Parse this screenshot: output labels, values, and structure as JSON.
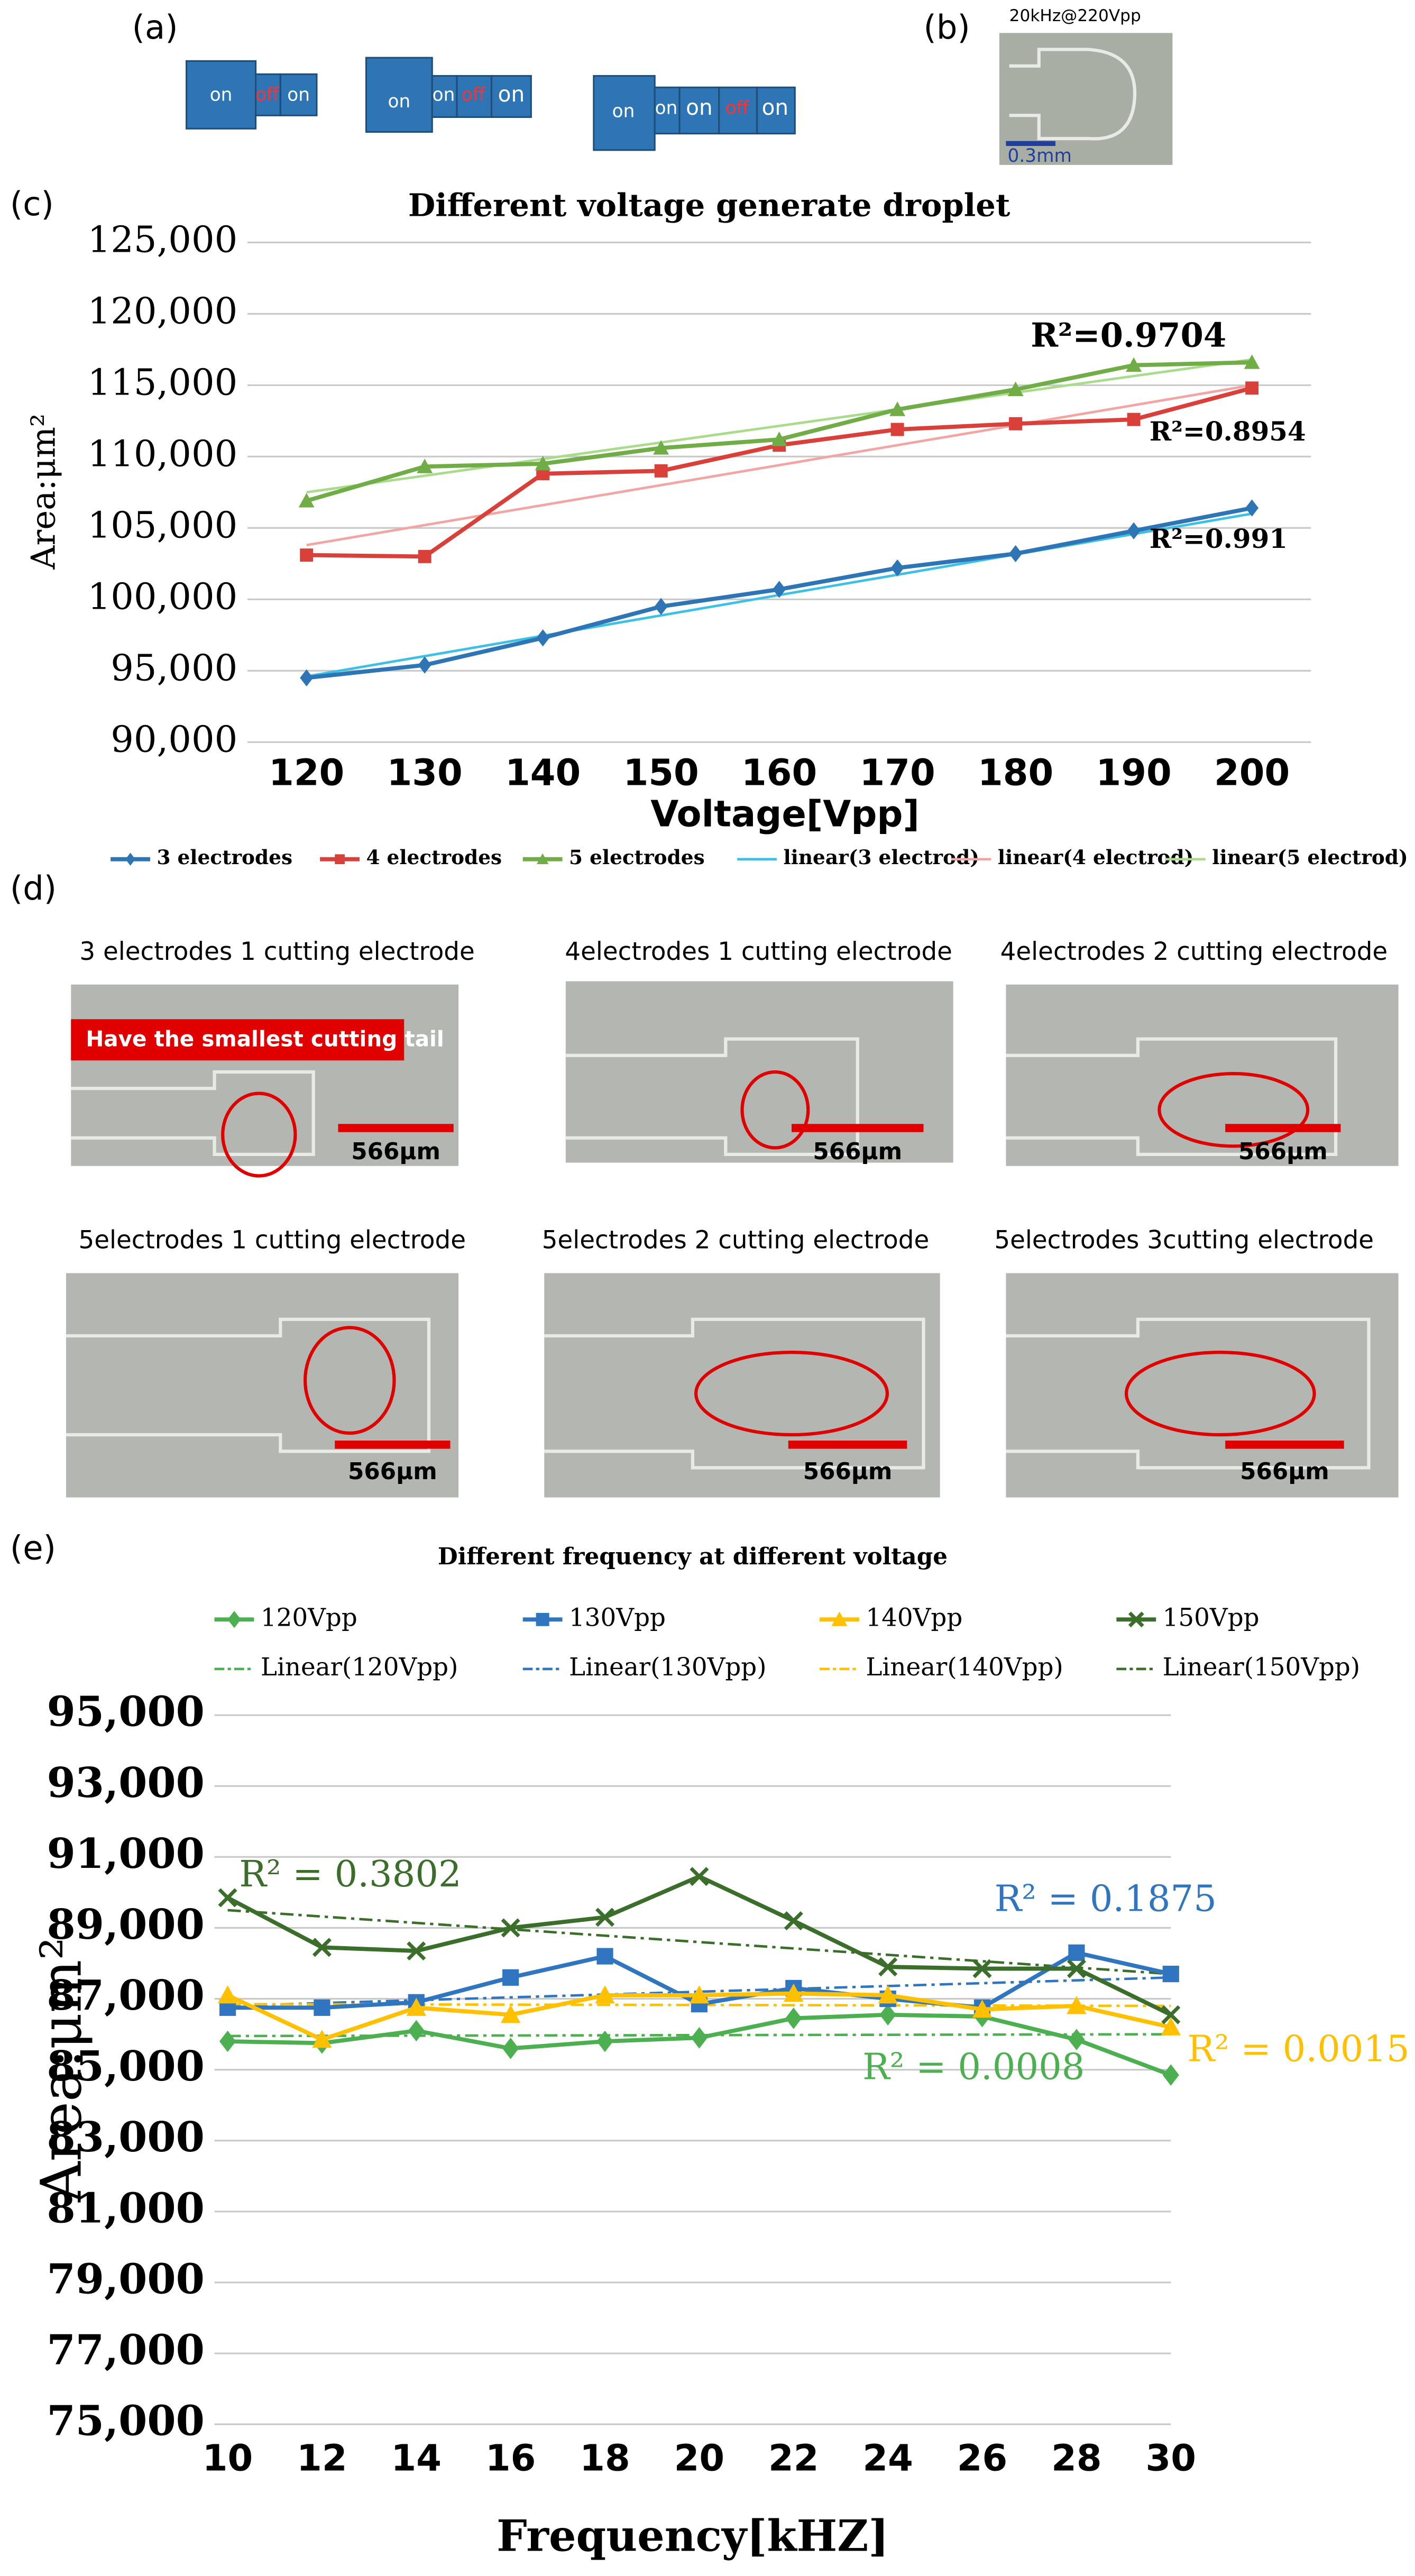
{
  "labels": {
    "a": "(a)",
    "b": "(b)",
    "c": "(c)",
    "d": "(d)",
    "e": "(e)"
  },
  "diagram_a": [
    [
      "on",
      "off",
      "on"
    ],
    [
      "on",
      "on",
      "off",
      "on"
    ],
    [
      "on",
      "on",
      "on",
      "off",
      "on"
    ]
  ],
  "photo_b": {
    "caption": "20kHz@220Vpp",
    "scale": "0.3mm"
  },
  "photos_d": [
    {
      "caption": "3 electrodes  1 cutting electrode",
      "scale": "566μm",
      "note": "Have the smallest cutting tail"
    },
    {
      "caption": "4electrodes  1 cutting electrode",
      "scale": "566μm"
    },
    {
      "caption": "4electrodes  2 cutting electrode",
      "scale": "566μm"
    },
    {
      "caption": "5electrodes  1 cutting electrode",
      "scale": "566μm"
    },
    {
      "caption": "5electrodes  2 cutting electrode",
      "scale": "566μm"
    },
    {
      "caption": "5electrodes  3cutting electrode",
      "scale": "566μm"
    }
  ],
  "chart_data": [
    {
      "type": "line",
      "title": "Different voltage generate droplet",
      "x_label": "Voltage[Vpp]",
      "y_label": "Area:μm²",
      "categories": [
        120,
        130,
        140,
        150,
        160,
        170,
        180,
        190,
        200
      ],
      "ylim": [
        90000,
        125000
      ],
      "yticks": [
        {
          "value": 90000,
          "label": "90,000"
        },
        {
          "value": 95000,
          "label": "95,000"
        },
        {
          "value": 100000,
          "label": "100,000"
        },
        {
          "value": 105000,
          "label": "105,000"
        },
        {
          "value": 110000,
          "label": "110,000"
        },
        {
          "value": 115000,
          "label": "115,000"
        },
        {
          "value": 120000,
          "label": "120,000"
        },
        {
          "value": 125000,
          "label": "125,000"
        }
      ],
      "grid": true,
      "series": [
        {
          "name": "3 electrodes",
          "color": "#2e75b6",
          "marker": "diamond",
          "values": [
            94500,
            95400,
            97300,
            99500,
            100700,
            102200,
            103200,
            104800,
            106400
          ]
        },
        {
          "name": "4 electrodes",
          "color": "#d9403a",
          "marker": "square",
          "values": [
            103100,
            103000,
            108800,
            109000,
            110800,
            111900,
            112300,
            112600,
            114800
          ]
        },
        {
          "name": "5 electrodes",
          "color": "#70ad47",
          "marker": "triangle",
          "values": [
            106900,
            109300,
            109500,
            110600,
            111200,
            113300,
            114700,
            116400,
            116600
          ]
        },
        {
          "name": "linear(3 electrod)",
          "color": "#3cc0e6",
          "linestyle": "solid",
          "values": [
            94600,
            96025,
            97450,
            98875,
            100300,
            101725,
            103150,
            104575,
            106000
          ]
        },
        {
          "name": "linear(4 electrod)",
          "color": "#f2a5a5",
          "linestyle": "solid",
          "values": [
            103800,
            105200,
            106600,
            108000,
            109400,
            110800,
            112200,
            113600,
            115000
          ]
        },
        {
          "name": "linear(5 electrod)",
          "color": "#a9db8a",
          "linestyle": "solid",
          "values": [
            107500,
            108660,
            109830,
            110990,
            112150,
            113310,
            114480,
            115640,
            116800
          ]
        }
      ],
      "annotations": [
        {
          "text": "R²=0.9704",
          "color": "#000000"
        },
        {
          "text": "R²=0.8954",
          "color": "#000000"
        },
        {
          "text": "R²=0.991",
          "color": "#000000"
        }
      ]
    },
    {
      "type": "line",
      "title": "Different frequency at different voltage",
      "x_label": "Frequency[kHZ]",
      "y_label": "Area:μm²",
      "x": [
        10,
        12,
        14,
        16,
        18,
        20,
        22,
        24,
        26,
        28,
        30
      ],
      "xlim": [
        10,
        30
      ],
      "xticks": [
        10,
        12,
        14,
        16,
        18,
        20,
        22,
        24,
        26,
        28,
        30
      ],
      "ylim": [
        75000,
        95000
      ],
      "yticks": [
        {
          "value": 75000,
          "label": "75,000"
        },
        {
          "value": 77000,
          "label": "77,000"
        },
        {
          "value": 79000,
          "label": "79,000"
        },
        {
          "value": 81000,
          "label": "81,000"
        },
        {
          "value": 83000,
          "label": "83,000"
        },
        {
          "value": 85000,
          "label": "85,000"
        },
        {
          "value": 87000,
          "label": "87,000"
        },
        {
          "value": 89000,
          "label": "89,000"
        },
        {
          "value": 91000,
          "label": "91,000"
        },
        {
          "value": 93000,
          "label": "93,000"
        },
        {
          "value": 95000,
          "label": "95,000"
        }
      ],
      "grid": true,
      "series": [
        {
          "name": "120Vpp",
          "color": "#4caf50",
          "marker": "diamond",
          "values": [
            85800,
            85750,
            86100,
            85600,
            85800,
            85900,
            86450,
            86550,
            86500,
            85850,
            84850
          ]
        },
        {
          "name": "130Vpp",
          "color": "#2f75c0",
          "marker": "square",
          "values": [
            86750,
            86750,
            86900,
            87600,
            88200,
            86850,
            87300,
            87000,
            86750,
            88300,
            87700
          ]
        },
        {
          "name": "140Vpp",
          "color": "#ffc000",
          "marker": "triangle",
          "values": [
            87100,
            85850,
            86750,
            86550,
            87100,
            87100,
            87150,
            87100,
            86700,
            86800,
            86200
          ]
        },
        {
          "name": "150Vpp",
          "color": "#3a6e2a",
          "marker": "x",
          "values": [
            89850,
            88450,
            88350,
            89000,
            89300,
            90450,
            89200,
            87900,
            87850,
            87850,
            86550
          ]
        },
        {
          "name": "Linear(120Vpp)",
          "color": "#4caf50",
          "linestyle": "dashdot",
          "values": [
            85950,
            85955,
            85960,
            85965,
            85970,
            85975,
            85980,
            85985,
            85990,
            85995,
            86000
          ]
        },
        {
          "name": "Linear(130Vpp)",
          "color": "#2f75c0",
          "linestyle": "dashdot",
          "values": [
            86800,
            86880,
            86960,
            87040,
            87120,
            87200,
            87280,
            87360,
            87440,
            87520,
            87600
          ]
        },
        {
          "name": "Linear(140Vpp)",
          "color": "#ffc000",
          "linestyle": "dashdot",
          "values": [
            86850,
            86845,
            86840,
            86835,
            86830,
            86825,
            86820,
            86815,
            86810,
            86805,
            86800
          ]
        },
        {
          "name": "Linear(150Vpp)",
          "color": "#3a6e2a",
          "linestyle": "dashdot",
          "values": [
            89500,
            89320,
            89140,
            88960,
            88780,
            88600,
            88420,
            88240,
            88060,
            87880,
            87700
          ]
        }
      ],
      "annotations": [
        {
          "text": "R² = 0.3802",
          "color": "#3a6e2a"
        },
        {
          "text": "R² = 0.1875",
          "color": "#2f75c0"
        },
        {
          "text": "R² = 0.0008",
          "color": "#4caf50"
        },
        {
          "text": "R² = 0.0015",
          "color": "#ffc000"
        }
      ]
    }
  ]
}
